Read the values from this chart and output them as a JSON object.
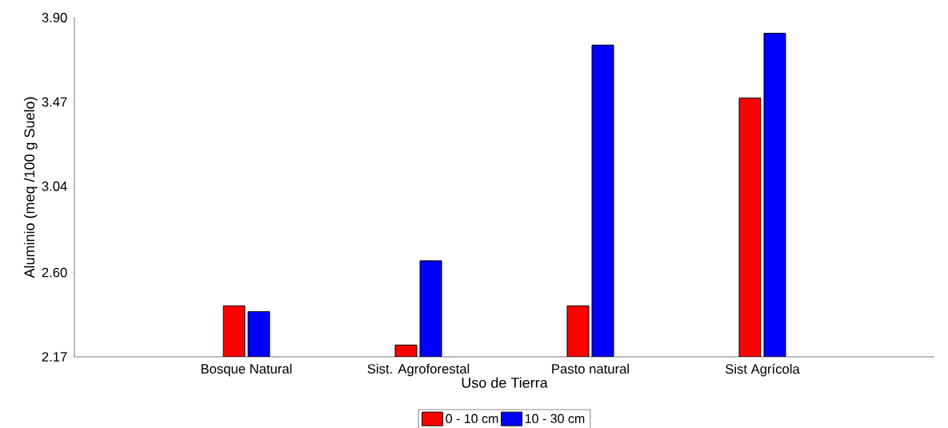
{
  "chart_data": {
    "type": "bar",
    "xlabel": "Uso de Tierra",
    "ylabel": "Aluminio (meq /100 g Suelo)",
    "categories": [
      "Bosque Natural",
      "Sist. Agroforestal",
      "Pasto natural",
      "Sist Agrícola"
    ],
    "series": [
      {
        "name": "0 - 10 cm",
        "color": "#ff0000",
        "values": [
          2.43,
          2.23,
          2.43,
          3.49
        ]
      },
      {
        "name": "10 - 30 cm",
        "color": "#0000ff",
        "values": [
          2.4,
          2.66,
          3.76,
          3.82
        ]
      }
    ],
    "ylim": [
      2.17,
      3.9
    ],
    "yticks": [
      2.17,
      {
        "value": 2.6,
        "label": "2.60"
      },
      3.04,
      3.47,
      {
        "value": 3.9,
        "label": "3.90"
      }
    ],
    "grid": false,
    "legend": "bottom"
  }
}
